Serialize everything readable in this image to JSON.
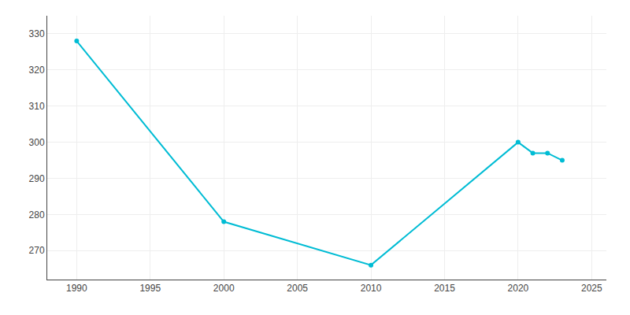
{
  "chart_data": {
    "type": "line",
    "x": [
      1990,
      2000,
      2010,
      2020,
      2021,
      2022,
      2023
    ],
    "values": [
      328,
      278,
      266,
      300,
      297,
      297,
      295
    ],
    "color": "#00bcd4",
    "marker": "circle",
    "xlim": [
      1988,
      2026
    ],
    "xticks": [
      1990,
      1995,
      2000,
      2005,
      2010,
      2015,
      2020,
      2025
    ],
    "ylim": [
      262,
      335
    ],
    "yticks": [
      270,
      280,
      290,
      300,
      310,
      320,
      330
    ],
    "grid": true
  }
}
